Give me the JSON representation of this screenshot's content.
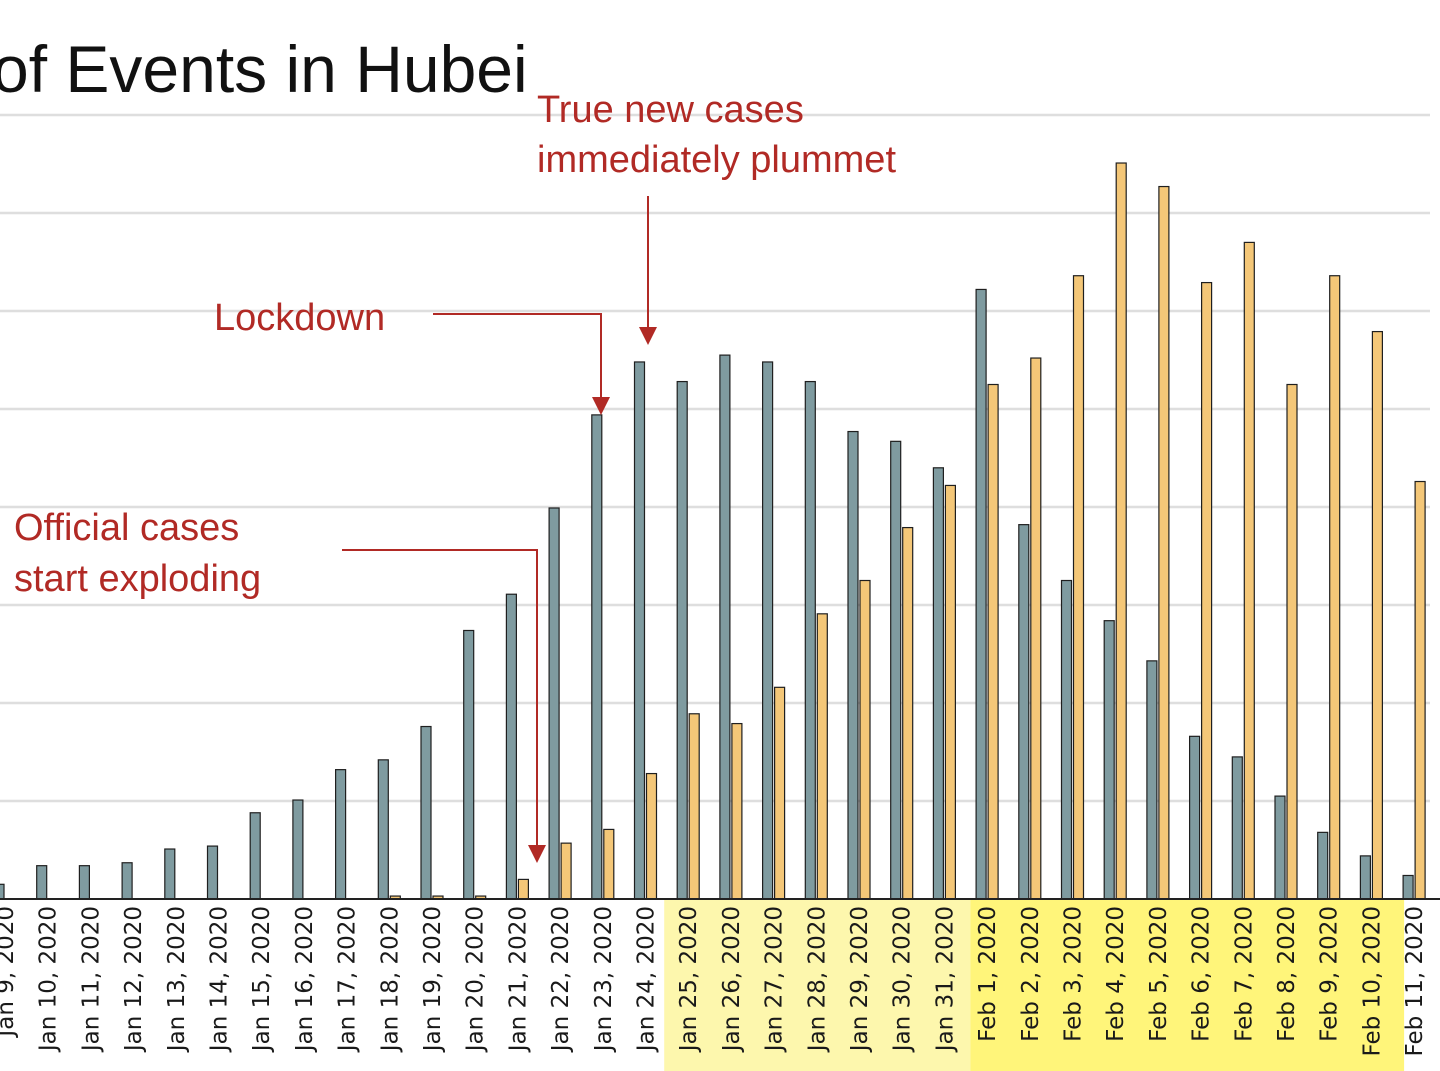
{
  "chart_data": {
    "type": "bar",
    "title": "of Events in Hubei",
    "categories": [
      "Jan 9, 2020",
      "Jan 10, 2020",
      "Jan 11, 2020",
      "Jan 12, 2020",
      "Jan 13, 2020",
      "Jan 14, 2020",
      "Jan 15, 2020",
      "Jan 16, 2020",
      "Jan 17, 2020",
      "Jan 18, 2020",
      "Jan 19, 2020",
      "Jan 20, 2020",
      "Jan 21, 2020",
      "Jan 22, 2020",
      "Jan 23, 2020",
      "Jan 24, 2020",
      "Jan 25, 2020",
      "Jan 26, 2020",
      "Jan 27, 2020",
      "Jan 28, 2020",
      "Jan 29, 2020",
      "Jan 30, 2020",
      "Jan 31, 2020",
      "Feb 1, 2020",
      "Feb 2, 2020",
      "Feb 3, 2020",
      "Feb 4, 2020",
      "Feb 5, 2020",
      "Feb 6, 2020",
      "Feb 7, 2020",
      "Feb 8, 2020",
      "Feb 9, 2020",
      "Feb 10, 2020",
      "Feb 11, 2020"
    ],
    "series": [
      {
        "values": [
          0.15,
          0.34,
          0.34,
          0.37,
          0.51,
          0.54,
          0.88,
          1.01,
          1.32,
          1.42,
          1.76,
          2.74,
          3.11,
          3.99,
          4.94,
          5.48,
          5.28,
          5.55,
          5.48,
          5.28,
          4.77,
          4.67,
          4.4,
          6.22,
          3.82,
          3.25,
          2.84,
          2.43,
          1.66,
          1.45,
          1.05,
          0.68,
          0.44,
          0.24
        ]
      },
      {
        "values": [
          0,
          0,
          0,
          0,
          0,
          0,
          0,
          0,
          0,
          0.03,
          0.03,
          0.03,
          0.2,
          0.57,
          0.71,
          1.28,
          1.89,
          1.79,
          2.16,
          2.91,
          3.25,
          3.79,
          4.22,
          5.25,
          5.52,
          6.36,
          7.51,
          7.27,
          6.29,
          6.7,
          5.25,
          6.36,
          5.79,
          4.26
        ]
      }
    ],
    "ylim": [
      0,
      8
    ],
    "yticks": [
      1,
      2,
      3,
      4,
      5,
      6,
      7,
      8
    ],
    "grid": true,
    "colors": {
      "series_a": "#7f9ba0",
      "series_b": "#f4c778",
      "bar_stroke": "#1f1f1f",
      "grid": "#dedede",
      "annotation": "#b12a25",
      "highlight_bright": "#fff57a",
      "highlight_pale": "#fdf7ad",
      "axis": "#222222"
    },
    "annotations": [
      {
        "text": [
          "True new cases",
          "immediately plummet"
        ],
        "target": "Jan 24, 2020"
      },
      {
        "text": [
          "Lockdown"
        ],
        "target": "Jan 23, 2020"
      },
      {
        "text": [
          "Official cases",
          "start exploding"
        ],
        "target": "Jan 21, 2020"
      }
    ]
  }
}
